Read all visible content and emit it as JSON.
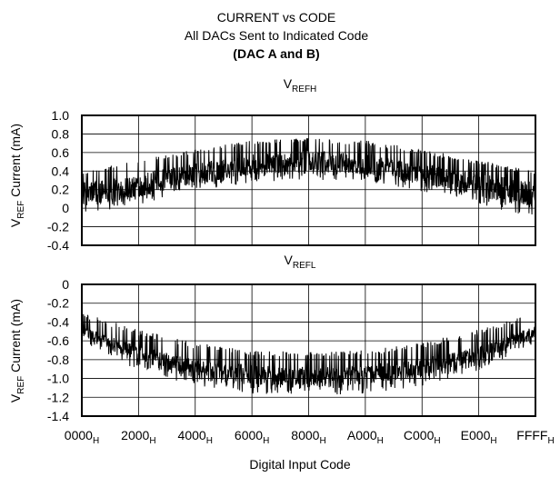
{
  "chart_data": [
    {
      "type": "line",
      "title": "CURRENT vs CODE",
      "subtitle": "All DACs Sent to Indicated Code",
      "subtitle2": "(DAC A and B)",
      "panel_title": "V",
      "panel_title_sub": "REFH",
      "ylabel": "V",
      "ylabel_sub": "REF",
      "ylabel_rest": " Current (mA)",
      "ylim": [
        -0.4,
        1.0
      ],
      "yticks": [
        "1.0",
        "0.8",
        "0.6",
        "0.4",
        "0.2",
        "0",
        "-0.2",
        "-0.4"
      ],
      "xlim": [
        0,
        65535
      ],
      "grid": true,
      "series": [
        {
          "envelope_x": [
            0,
            8192,
            16384,
            24576,
            32768,
            40960,
            49152,
            57344,
            65535
          ],
          "upper": [
            0.4,
            0.52,
            0.64,
            0.73,
            0.76,
            0.73,
            0.64,
            0.52,
            0.4
          ],
          "lower": [
            -0.1,
            0.04,
            0.18,
            0.28,
            0.31,
            0.28,
            0.18,
            0.04,
            -0.1
          ],
          "core_upper": [
            0.28,
            0.38,
            0.48,
            0.58,
            0.62,
            0.58,
            0.48,
            0.38,
            0.28
          ],
          "core_lower": [
            0.02,
            0.12,
            0.26,
            0.36,
            0.4,
            0.36,
            0.26,
            0.12,
            0.02
          ]
        }
      ]
    },
    {
      "type": "line",
      "panel_title": "V",
      "panel_title_sub": "REFL",
      "ylabel": "V",
      "ylabel_sub": "REF",
      "ylabel_rest": " Current (mA)",
      "ylim": [
        -1.4,
        0
      ],
      "yticks": [
        "0",
        "-0.2",
        "-0.4",
        "-0.6",
        "-0.8",
        "-1.0",
        "-1.2",
        "-1.4"
      ],
      "xlim": [
        0,
        65535
      ],
      "grid": true,
      "xlabel": "Digital Input Code",
      "xticks": [
        {
          "value": 0,
          "main": "0000",
          "sub": "H"
        },
        {
          "value": 8192,
          "main": "2000",
          "sub": "H"
        },
        {
          "value": 16384,
          "main": "4000",
          "sub": "H"
        },
        {
          "value": 24576,
          "main": "6000",
          "sub": "H"
        },
        {
          "value": 32768,
          "main": "8000",
          "sub": "H"
        },
        {
          "value": 40960,
          "main": "A000",
          "sub": "H"
        },
        {
          "value": 49152,
          "main": "C000",
          "sub": "H"
        },
        {
          "value": 57344,
          "main": "E000",
          "sub": "H"
        },
        {
          "value": 65535,
          "main": "FFFF",
          "sub": "H"
        }
      ],
      "series": [
        {
          "envelope_x": [
            0,
            8192,
            16384,
            24576,
            32768,
            40960,
            49152,
            57344,
            65535
          ],
          "upper": [
            -0.3,
            -0.48,
            -0.62,
            -0.7,
            -0.72,
            -0.7,
            -0.62,
            -0.48,
            -0.3
          ],
          "lower": [
            -0.62,
            -0.92,
            -1.08,
            -1.16,
            -1.18,
            -1.16,
            -1.08,
            -0.92,
            -0.62
          ],
          "core_upper": [
            -0.44,
            -0.66,
            -0.8,
            -0.86,
            -0.88,
            -0.86,
            -0.8,
            -0.66,
            -0.44
          ],
          "core_lower": [
            -0.56,
            -0.82,
            -0.98,
            -1.06,
            -1.08,
            -1.06,
            -0.98,
            -0.82,
            -0.56
          ]
        }
      ]
    }
  ]
}
